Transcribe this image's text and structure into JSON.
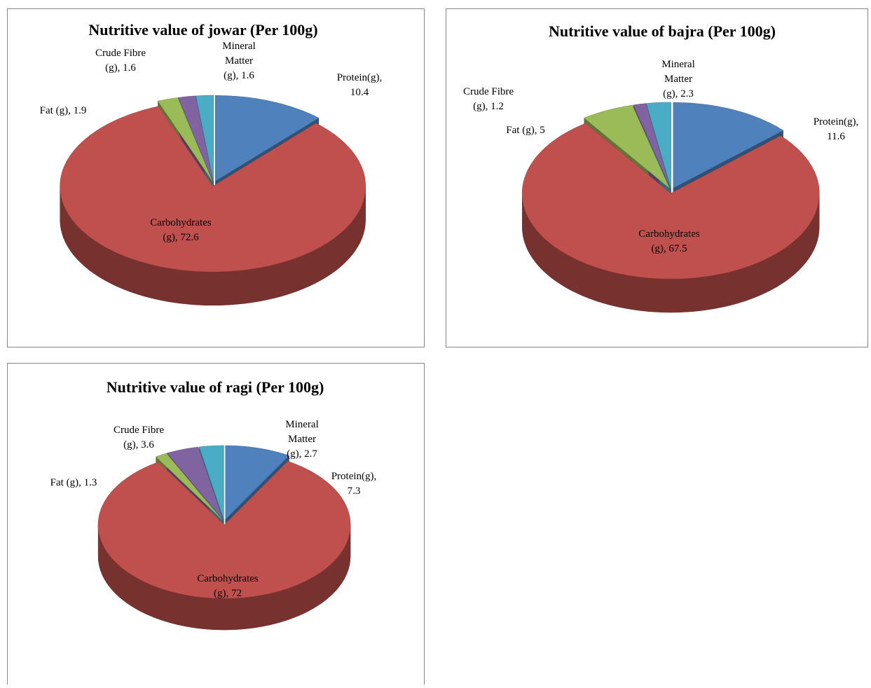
{
  "chart_data": [
    {
      "type": "pie",
      "title": "Nutritive value of jowar (Per 100g)",
      "values": [
        10.4,
        72.6,
        1.9,
        1.6,
        1.6
      ],
      "value_labels": [
        "Protein(g), 10.4",
        "Carbohydrates (g), 72.6",
        "Fat (g), 1.9",
        "Crude Fibre (g), 1.6",
        "Mineral Matter (g), 1.6"
      ],
      "colors": [
        "#4f81bd",
        "#c0504d",
        "#9bbb59",
        "#8064a2",
        "#4bacc6"
      ]
    },
    {
      "type": "pie",
      "title": "Nutritive value of bajra (Per 100g)",
      "values": [
        11.6,
        67.5,
        5,
        1.2,
        2.3
      ],
      "value_labels": [
        "Protein(g), 11.6",
        "Carbohydrates (g), 67.5",
        "Fat (g), 5",
        "Crude Fibre (g), 1.2",
        "Mineral Matter (g), 2.3"
      ],
      "colors": [
        "#4f81bd",
        "#c0504d",
        "#9bbb59",
        "#8064a2",
        "#4bacc6"
      ]
    },
    {
      "type": "pie",
      "title": "Nutritive value of ragi (Per 100g)",
      "values": [
        7.3,
        72,
        1.3,
        3.6,
        2.7
      ],
      "value_labels": [
        "Protein(g), 7.3",
        "Carbohydrates (g), 72",
        "Fat (g), 1.3",
        "Crude Fibre (g), 3.6",
        "Mineral Matter (g), 2.7"
      ],
      "colors": [
        "#4f81bd",
        "#c0504d",
        "#9bbb59",
        "#8064a2",
        "#4bacc6"
      ]
    }
  ]
}
